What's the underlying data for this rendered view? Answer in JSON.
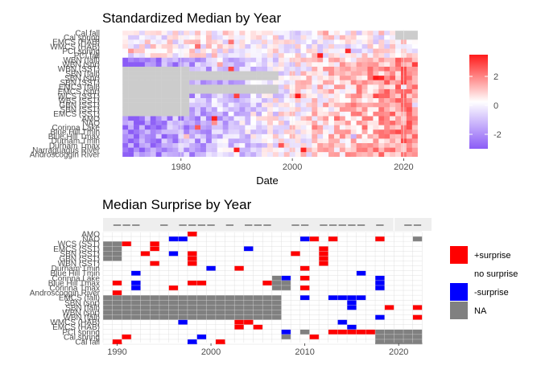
{
  "chart_data": [
    {
      "type": "heatmap",
      "title": "Standardized Median by Year",
      "xlabel": "Date",
      "ylabel": "",
      "xlim": [
        1966,
        2025
      ],
      "x_ticks": [
        1980,
        2000,
        2020
      ],
      "rows": [
        "Cal fall",
        "Cal spring",
        "EMCS (HAB)",
        "WMCS (HAB)",
        "PCI spring",
        "PCI fall",
        "WBN (fall)",
        "WBN (spr)",
        "WBN (SST)",
        "SBN (fall)",
        "SBN (spr)",
        "SBN (SST)",
        "EMCS (fall)",
        "EMCS (spr)",
        "WCS (SST)",
        "WBS (SST)",
        "GBN (SST)",
        "SBN (SST)",
        "EMCS (SST)",
        "AMO",
        "NAO",
        "Corinna Lake",
        "Blue Hill Tmin",
        "Blue Hill Tmax",
        "Durham Tmin",
        "Durham Tmax",
        "Narraguagus River",
        "Androscoggin River"
      ],
      "available_from": [
        1970,
        1970,
        1970,
        1970,
        1970,
        1970,
        1970,
        1970,
        1982,
        1998,
        1998,
        1982,
        1998,
        1998,
        1982,
        1982,
        1982,
        1982,
        1982,
        1970,
        1970,
        1970,
        1970,
        1970,
        1970,
        1970,
        1970,
        1970
      ],
      "available_to": [
        2018,
        2018,
        2022,
        2022,
        2022,
        2022,
        2022,
        2022,
        2022,
        2022,
        2022,
        2022,
        2022,
        2022,
        2022,
        2022,
        2022,
        2022,
        2022,
        2022,
        2022,
        2022,
        2022,
        2022,
        2022,
        2022,
        2022,
        2022
      ],
      "value_range": [
        -3,
        3.5
      ],
      "trend": "values mostly negative before ~2000 and mostly positive after ~2010 for the temperature series",
      "legend": {
        "title": "",
        "ticks": [
          2,
          0,
          -2
        ],
        "low_color": "#8b5cf6",
        "mid_color": "#ffffff",
        "high_color": "#ff1a1a",
        "na_color": "#cccccc",
        "position": "right"
      }
    },
    {
      "type": "heatmap",
      "title": "Median Surprise by Year",
      "xlabel": "",
      "ylabel": "",
      "xlim": [
        1988.5,
        2023.5
      ],
      "x_ticks": [
        1990,
        2000,
        2010,
        2020
      ],
      "rows": [
        "AMO",
        "NAO",
        "WCS (SST)",
        "EMCS (SST)",
        "SBN (SST)",
        "GBN (SST)",
        "WBN (SST)",
        "Durham Tmin",
        "Blue Hill Tmin",
        "Corinna Lake",
        "Blue Hill Tmax",
        "Corinna Tmax",
        "Androscoggin River",
        "EMCS (fall)",
        "SBN (spr)",
        "SBN (fall)",
        "WBN (spr)",
        "WBN (fall)",
        "WMCS (HAB)",
        "EMCS (HAB)",
        "PCI spring",
        "Cal spring",
        "Cal fall"
      ],
      "cell_categories": [
        "+surprise",
        "no surprise",
        "-surprise",
        "NA"
      ],
      "plus_surprise": [
        [
          "AMO",
          1998
        ],
        [
          "NAO",
          2011
        ],
        [
          "NAO",
          2013
        ],
        [
          "NAO",
          2018
        ],
        [
          "WCS (SST)",
          1991
        ],
        [
          "WCS (SST)",
          1994
        ],
        [
          "EMCS (SST)",
          1994
        ],
        [
          "EMCS (SST)",
          2012
        ],
        [
          "SBN (SST)",
          1993
        ],
        [
          "SBN (SST)",
          1998
        ],
        [
          "SBN (SST)",
          2009
        ],
        [
          "SBN (SST)",
          2012
        ],
        [
          "GBN (SST)",
          1998
        ],
        [
          "GBN (SST)",
          2012
        ],
        [
          "WBN (SST)",
          1994
        ],
        [
          "WBN (SST)",
          1998
        ],
        [
          "WBN (SST)",
          2012
        ],
        [
          "Durham Tmin",
          2003
        ],
        [
          "Durham Tmin",
          2010
        ],
        [
          "Corinna Lake",
          2010
        ],
        [
          "Blue Hill Tmax",
          1990
        ],
        [
          "Blue Hill Tmax",
          1998
        ],
        [
          "Blue Hill Tmax",
          1999
        ],
        [
          "Blue Hill Tmax",
          2006
        ],
        [
          "Corinna Tmax",
          1996
        ],
        [
          "Corinna Tmax",
          2010
        ],
        [
          "Androscoggin River",
          1990
        ],
        [
          "SBN (fall)",
          2019
        ],
        [
          "SBN (fall)",
          2022
        ],
        [
          "WBN (fall)",
          2022
        ],
        [
          "WMCS (HAB)",
          2003
        ],
        [
          "WMCS (HAB)",
          2004
        ],
        [
          "EMCS (HAB)",
          2003
        ],
        [
          "EMCS (HAB)",
          2005
        ],
        [
          "PCI spring",
          2013
        ],
        [
          "PCI spring",
          2014
        ],
        [
          "PCI spring",
          2015
        ],
        [
          "PCI spring",
          2016
        ],
        [
          "PCI spring",
          2017
        ],
        [
          "Cal spring",
          1991
        ],
        [
          "Cal spring",
          2011
        ],
        [
          "Cal fall",
          1990
        ],
        [
          "Cal fall",
          2001
        ]
      ],
      "minus_surprise": [
        [
          "NAO",
          1996
        ],
        [
          "NAO",
          1997
        ],
        [
          "NAO",
          2010
        ],
        [
          "EMCS (SST)",
          2004
        ],
        [
          "SBN (SST)",
          1996
        ],
        [
          "Durham Tmin",
          2000
        ],
        [
          "Blue Hill Tmin",
          1992
        ],
        [
          "Blue Hill Tmin",
          2016
        ],
        [
          "Corinna Lake",
          2008
        ],
        [
          "Corinna Lake",
          2018
        ],
        [
          "Blue Hill Tmax",
          1992
        ],
        [
          "Blue Hill Tmax",
          2018
        ],
        [
          "Corinna Tmax",
          1992
        ],
        [
          "Corinna Tmax",
          2018
        ],
        [
          "EMCS (fall)",
          2010
        ],
        [
          "EMCS (fall)",
          2013
        ],
        [
          "EMCS (fall)",
          2014
        ],
        [
          "EMCS (fall)",
          2015
        ],
        [
          "EMCS (fall)",
          2016
        ],
        [
          "SBN (spr)",
          2015
        ],
        [
          "SBN (fall)",
          2015
        ],
        [
          "WBN (fall)",
          2018
        ],
        [
          "WMCS (HAB)",
          1997
        ],
        [
          "WMCS (HAB)",
          2014
        ],
        [
          "EMCS (HAB)",
          2015
        ],
        [
          "PCI spring",
          2008
        ],
        [
          "Cal spring",
          1999
        ],
        [
          "Cal fall",
          1998
        ]
      ],
      "na_cells": [
        [
          "NAO",
          2022
        ],
        [
          "WCS (SST)",
          1989
        ],
        [
          "WCS (SST)",
          1990
        ],
        [
          "EMCS (SST)",
          1989
        ],
        [
          "EMCS (SST)",
          1990
        ],
        [
          "SBN (SST)",
          1989
        ],
        [
          "SBN (SST)",
          1990
        ],
        [
          "GBN (SST)",
          1989
        ],
        [
          "GBN (SST)",
          1990
        ],
        [
          "Corinna Lake",
          2007
        ],
        [
          "Blue Hill Tmax",
          2007
        ],
        [
          "Blue Hill Tmax",
          2008
        ],
        [
          "Corinna Tmax",
          2007
        ],
        [
          "Corinna Tmax",
          2008
        ],
        [
          "PCI spring",
          2010
        ],
        [
          "Cal spring",
          2008
        ]
      ],
      "na_row_ranges": [
        [
          "EMCS (fall)",
          1989,
          2007
        ],
        [
          "SBN (spr)",
          1989,
          2007
        ],
        [
          "SBN (fall)",
          1989,
          2007
        ],
        [
          "WBN (spr)",
          1989,
          2007
        ],
        [
          "WBN (fall)",
          1989,
          2007
        ],
        [
          "PCI spring",
          2018,
          2022
        ],
        [
          "Cal spring",
          2018,
          2022
        ],
        [
          "Cal fall",
          2018,
          2022
        ]
      ],
      "legend": {
        "title": "",
        "entries": [
          {
            "label": "+surprise",
            "color": "#ff0000"
          },
          {
            "label": "no surprise",
            "color": "#ffffff"
          },
          {
            "label": "-surprise",
            "color": "#0000ff"
          },
          {
            "label": "NA",
            "color": "#808080"
          }
        ],
        "position": "right"
      }
    }
  ]
}
